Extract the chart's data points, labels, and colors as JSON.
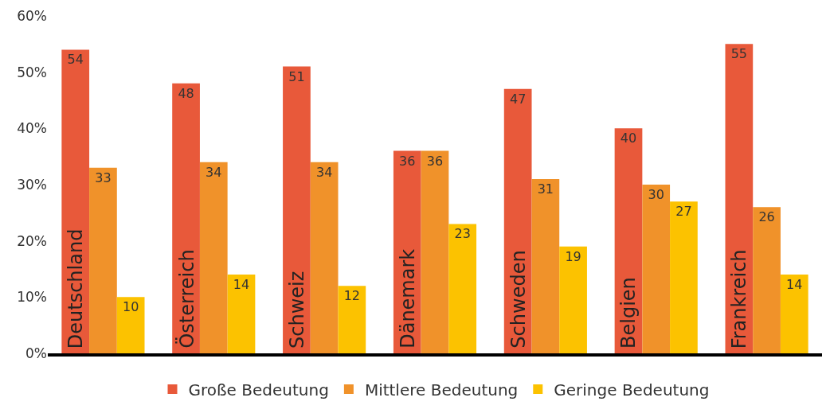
{
  "chart_data": {
    "type": "bar",
    "categories": [
      "Deutschland",
      "Österreich",
      "Schweiz",
      "Dänemark",
      "Schweden",
      "Belgien",
      "Frankreich"
    ],
    "series": [
      {
        "name": "Große Bedeutung",
        "color": "#e8593a",
        "values": [
          54,
          48,
          51,
          36,
          47,
          40,
          55
        ]
      },
      {
        "name": "Mittlere Bedeutung",
        "color": "#f0922a",
        "values": [
          33,
          34,
          34,
          36,
          31,
          30,
          26
        ]
      },
      {
        "name": "Geringe Bedeutung",
        "color": "#fcc200",
        "values": [
          10,
          14,
          12,
          23,
          19,
          27,
          14
        ]
      }
    ],
    "ylim": [
      0,
      60
    ],
    "yticks": [
      {
        "value": 0,
        "label": "0%"
      },
      {
        "value": 10,
        "label": "10%"
      },
      {
        "value": 20,
        "label": "20%"
      },
      {
        "value": 30,
        "label": "30%"
      },
      {
        "value": 40,
        "label": "40%"
      },
      {
        "value": 50,
        "label": "50%"
      },
      {
        "value": 60,
        "label": "60%"
      }
    ],
    "data_labels": true,
    "legend": "bottom"
  }
}
